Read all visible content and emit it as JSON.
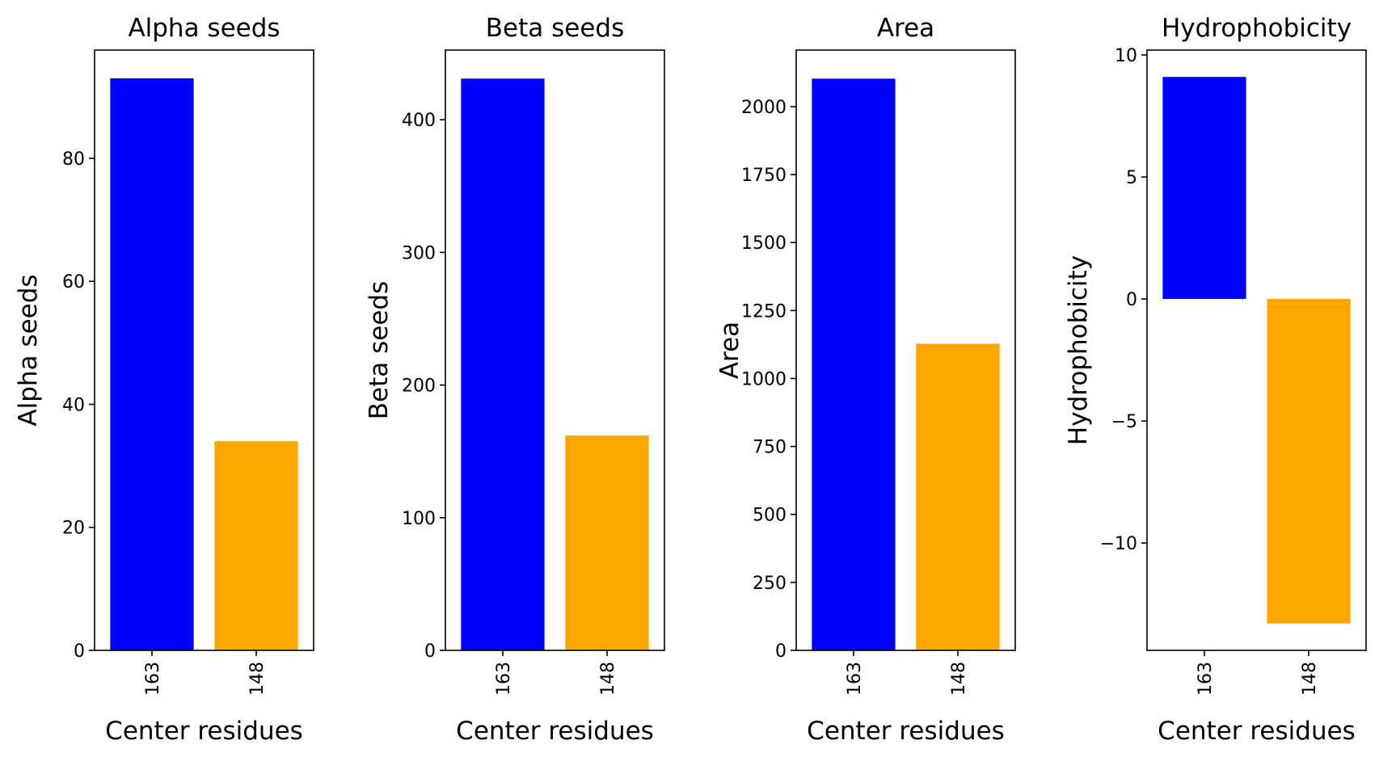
{
  "chart_data": [
    {
      "type": "bar",
      "title": "Alpha seeds",
      "xlabel": "Center residues",
      "ylabel": "Alpha seeds",
      "categories": [
        "163",
        "148"
      ],
      "values": [
        93,
        34
      ],
      "colors": [
        "#0000ff",
        "#ffa500"
      ],
      "ylim": [
        0,
        97.6
      ],
      "yticks": [
        0,
        20,
        40,
        60,
        80
      ],
      "grid": false
    },
    {
      "type": "bar",
      "title": "Beta seeds",
      "xlabel": "Center residues",
      "ylabel": "Beta seeds",
      "categories": [
        "163",
        "148"
      ],
      "values": [
        431,
        162
      ],
      "colors": [
        "#0000ff",
        "#ffa500"
      ],
      "ylim": [
        0,
        452.5
      ],
      "yticks": [
        0,
        100,
        200,
        300,
        400
      ],
      "grid": false
    },
    {
      "type": "bar",
      "title": "Area",
      "xlabel": "Center residues",
      "ylabel": "Area",
      "categories": [
        "163",
        "148"
      ],
      "values": [
        2103,
        1128
      ],
      "colors": [
        "#0000ff",
        "#ffa500"
      ],
      "ylim": [
        0,
        2208
      ],
      "yticks": [
        0,
        250,
        500,
        750,
        1000,
        1250,
        1500,
        1750,
        2000
      ],
      "grid": false
    },
    {
      "type": "bar",
      "title": "Hydrophobicity",
      "xlabel": "Center residues",
      "ylabel": "Hydrophobicity",
      "categories": [
        "163",
        "148"
      ],
      "values": [
        9.1,
        -13.3
      ],
      "colors": [
        "#0000ff",
        "#ffa500"
      ],
      "ylim": [
        -14.4,
        10.2
      ],
      "yticks": [
        -10,
        -5,
        0,
        5,
        10
      ],
      "ytick_labels": [
        "−10",
        "−5",
        "0",
        "5",
        "10"
      ],
      "grid": false
    }
  ]
}
